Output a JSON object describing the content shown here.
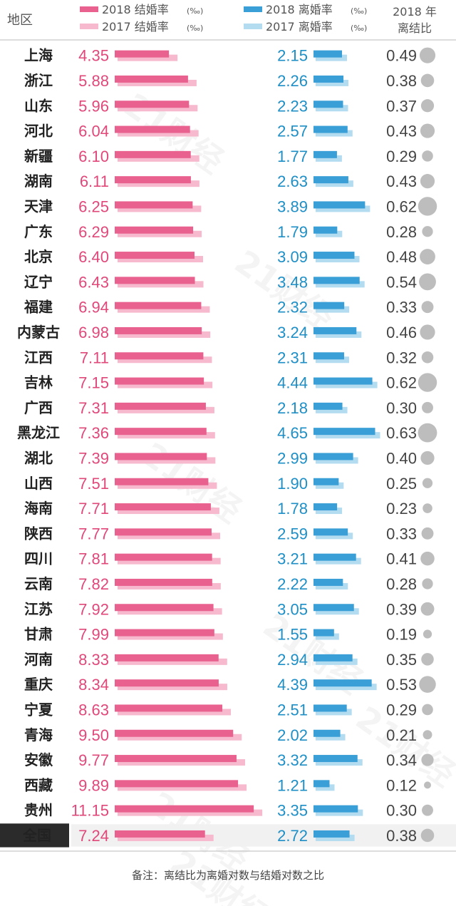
{
  "header": {
    "region_label": "地区",
    "legend": {
      "marriage_2018": "2018 结婚率",
      "marriage_2017": "2017 结婚率",
      "divorce_2018": "2018 离婚率",
      "divorce_2017": "2017 离婚率",
      "unit": "(‰)"
    },
    "ratio_label_line1": "2018 年",
    "ratio_label_line2": "离结比"
  },
  "note": "备注：离结比为离婚对数与结婚对数之比",
  "watermark": "21财经",
  "colors": {
    "marriage_2018": "#e9628f",
    "marriage_2017": "#f6b9cd",
    "divorce_2018": "#3a9fd6",
    "divorce_2017": "#b4dcf1",
    "ratio_dot": "#bdbdbd",
    "national_bg": "#2b2b2b"
  },
  "chart_data": {
    "type": "bar",
    "categories": [
      "上海",
      "浙江",
      "山东",
      "河北",
      "新疆",
      "湖南",
      "天津",
      "广东",
      "北京",
      "辽宁",
      "福建",
      "内蒙古",
      "江西",
      "吉林",
      "广西",
      "黑龙江",
      "湖北",
      "山西",
      "海南",
      "陕西",
      "四川",
      "云南",
      "江苏",
      "甘肃",
      "河南",
      "重庆",
      "宁夏",
      "青海",
      "安徽",
      "西藏",
      "贵州",
      "全国"
    ],
    "series": [
      {
        "name": "2018 结婚率",
        "values": [
          4.35,
          5.88,
          5.96,
          6.04,
          6.1,
          6.11,
          6.25,
          6.29,
          6.4,
          6.43,
          6.94,
          6.98,
          7.11,
          7.15,
          7.31,
          7.36,
          7.39,
          7.51,
          7.71,
          7.77,
          7.81,
          7.82,
          7.92,
          7.99,
          8.33,
          8.34,
          8.63,
          9.5,
          9.77,
          9.89,
          11.15,
          7.24
        ]
      },
      {
        "name": "2018 离婚率",
        "values": [
          2.15,
          2.26,
          2.23,
          2.57,
          1.77,
          2.63,
          3.89,
          1.79,
          3.09,
          3.48,
          2.32,
          3.24,
          2.31,
          4.44,
          2.18,
          4.65,
          2.99,
          1.9,
          1.78,
          2.59,
          3.21,
          2.22,
          3.05,
          1.55,
          2.94,
          4.39,
          2.51,
          2.02,
          3.32,
          1.21,
          3.35,
          2.72
        ]
      },
      {
        "name": "2018 年离结比",
        "values": [
          0.49,
          0.38,
          0.37,
          0.43,
          0.29,
          0.43,
          0.62,
          0.28,
          0.48,
          0.54,
          0.33,
          0.46,
          0.32,
          0.62,
          0.3,
          0.63,
          0.4,
          0.25,
          0.23,
          0.33,
          0.41,
          0.28,
          0.39,
          0.19,
          0.35,
          0.53,
          0.29,
          0.21,
          0.34,
          0.12,
          0.3,
          0.38
        ]
      }
    ]
  }
}
